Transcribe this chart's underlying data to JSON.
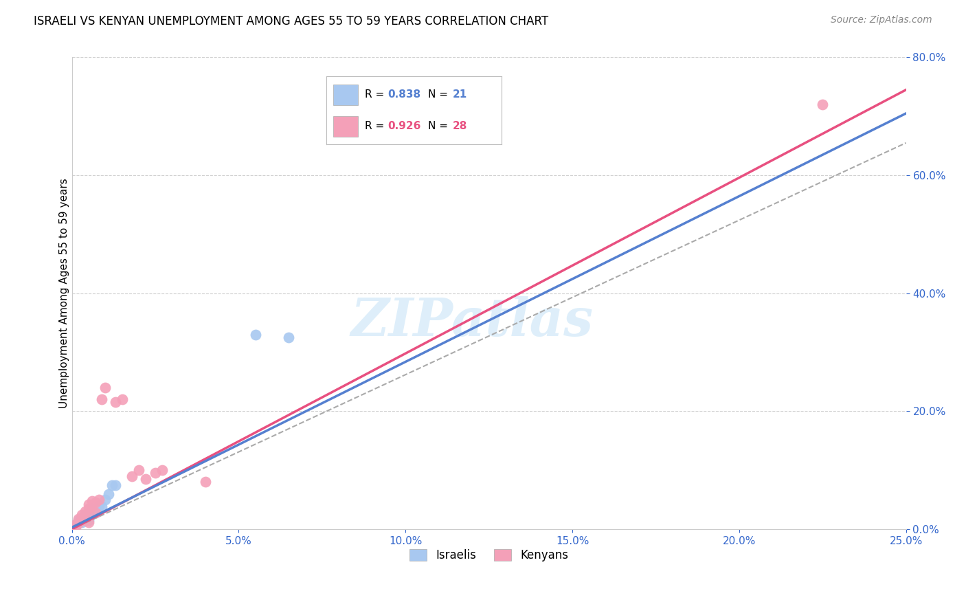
{
  "title": "ISRAELI VS KENYAN UNEMPLOYMENT AMONG AGES 55 TO 59 YEARS CORRELATION CHART",
  "source": "Source: ZipAtlas.com",
  "ylabel": "Unemployment Among Ages 55 to 59 years",
  "xlim": [
    0.0,
    0.25
  ],
  "ylim": [
    0.0,
    0.8
  ],
  "xticks": [
    0.0,
    0.05,
    0.1,
    0.15,
    0.2,
    0.25
  ],
  "yticks": [
    0.0,
    0.2,
    0.4,
    0.6,
    0.8
  ],
  "israeli_R": 0.838,
  "israeli_N": 21,
  "kenyan_R": 0.926,
  "kenyan_N": 28,
  "israeli_color": "#a8c8f0",
  "kenyan_color": "#f4a0b8",
  "israeli_line_color": "#5580d0",
  "kenyan_line_color": "#e85080",
  "dashed_line_color": "#aaaaaa",
  "israeli_line": [
    0.0,
    0.003,
    0.25,
    0.705
  ],
  "kenyan_line": [
    0.0,
    0.0,
    0.25,
    0.745
  ],
  "dashed_line": [
    0.0,
    0.0,
    0.25,
    0.655
  ],
  "israeli_points": [
    [
      0.001,
      0.005
    ],
    [
      0.001,
      0.008
    ],
    [
      0.002,
      0.01
    ],
    [
      0.002,
      0.015
    ],
    [
      0.003,
      0.012
    ],
    [
      0.003,
      0.018
    ],
    [
      0.004,
      0.02
    ],
    [
      0.004,
      0.025
    ],
    [
      0.005,
      0.015
    ],
    [
      0.005,
      0.022
    ],
    [
      0.006,
      0.03
    ],
    [
      0.006,
      0.035
    ],
    [
      0.007,
      0.028
    ],
    [
      0.008,
      0.04
    ],
    [
      0.009,
      0.038
    ],
    [
      0.01,
      0.05
    ],
    [
      0.011,
      0.06
    ],
    [
      0.012,
      0.075
    ],
    [
      0.013,
      0.075
    ],
    [
      0.055,
      0.33
    ],
    [
      0.065,
      0.325
    ]
  ],
  "kenyan_points": [
    [
      0.001,
      0.004
    ],
    [
      0.001,
      0.008
    ],
    [
      0.002,
      0.01
    ],
    [
      0.002,
      0.018
    ],
    [
      0.003,
      0.015
    ],
    [
      0.003,
      0.02
    ],
    [
      0.003,
      0.025
    ],
    [
      0.004,
      0.022
    ],
    [
      0.004,
      0.03
    ],
    [
      0.005,
      0.035
    ],
    [
      0.005,
      0.042
    ],
    [
      0.005,
      0.012
    ],
    [
      0.006,
      0.038
    ],
    [
      0.006,
      0.048
    ],
    [
      0.007,
      0.028
    ],
    [
      0.007,
      0.045
    ],
    [
      0.008,
      0.05
    ],
    [
      0.009,
      0.22
    ],
    [
      0.01,
      0.24
    ],
    [
      0.013,
      0.215
    ],
    [
      0.015,
      0.22
    ],
    [
      0.018,
      0.09
    ],
    [
      0.02,
      0.1
    ],
    [
      0.022,
      0.085
    ],
    [
      0.025,
      0.095
    ],
    [
      0.027,
      0.1
    ],
    [
      0.04,
      0.08
    ],
    [
      0.225,
      0.72
    ]
  ],
  "watermark_text": "ZIPatlas",
  "watermark_color": "#d0e8f8",
  "background_color": "#ffffff",
  "grid_color": "#d0d0d0"
}
